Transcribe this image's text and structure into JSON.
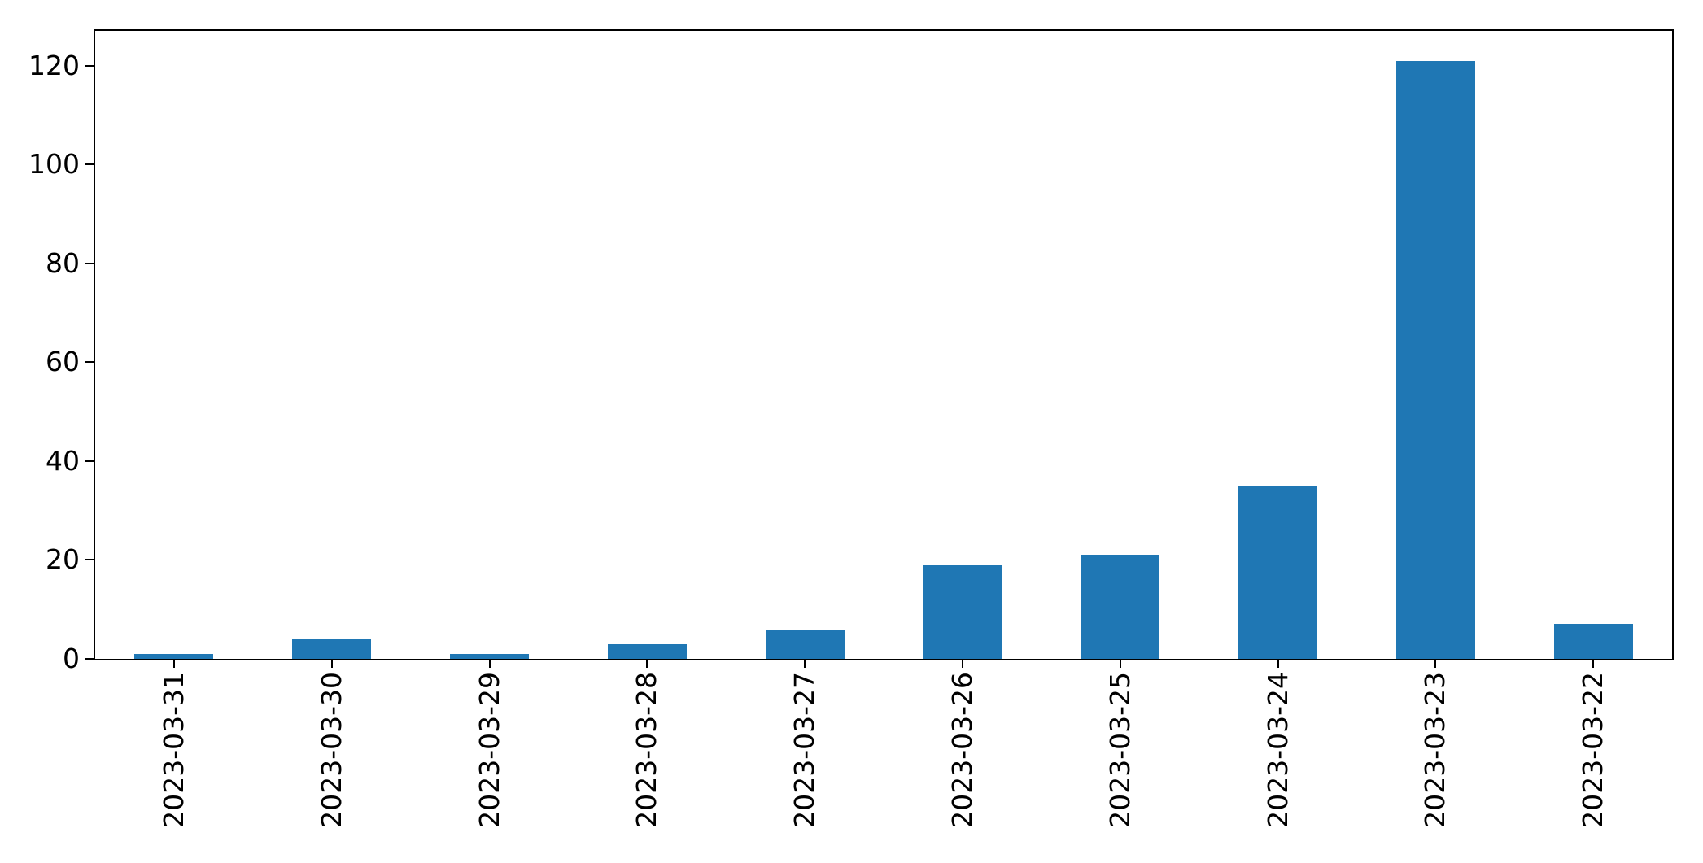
{
  "chart_data": {
    "type": "bar",
    "categories": [
      "2023-03-31",
      "2023-03-30",
      "2023-03-29",
      "2023-03-28",
      "2023-03-27",
      "2023-03-26",
      "2023-03-25",
      "2023-03-24",
      "2023-03-23",
      "2023-03-22"
    ],
    "values": [
      1,
      4,
      1,
      3,
      6,
      19,
      21,
      35,
      121,
      7
    ],
    "title": "",
    "xlabel": "",
    "ylabel": "",
    "ylim": [
      0,
      127.05
    ],
    "yticks": [
      0,
      20,
      40,
      60,
      80,
      100,
      120
    ],
    "x_tick_rotation_deg": 90,
    "bar_color": "#1f77b4",
    "grid": false,
    "legend": null
  }
}
